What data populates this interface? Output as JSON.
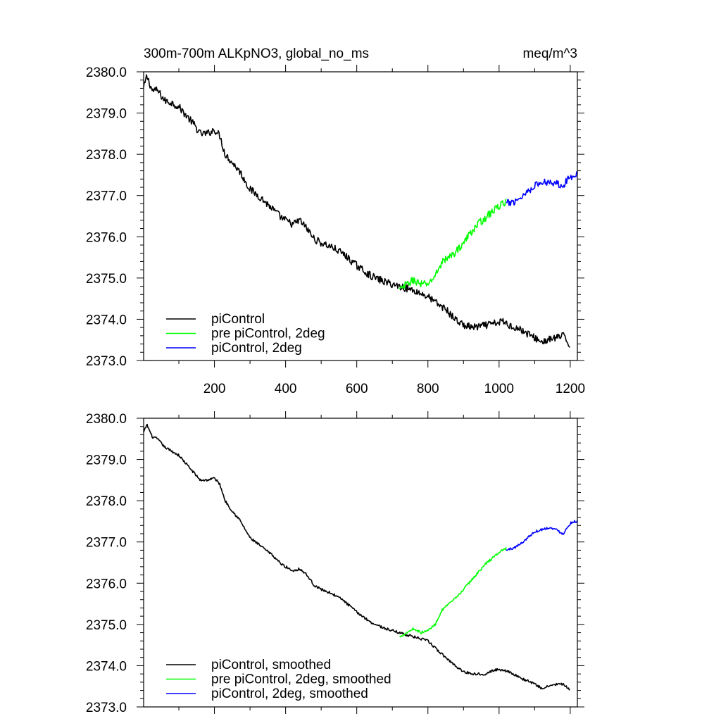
{
  "chart_data": [
    {
      "type": "line",
      "title": "300m-700m ALKpNO3, global_no_ms",
      "units": "meq/m^3",
      "xlabel": "",
      "ylabel": "",
      "xlim": [
        1,
        1220
      ],
      "ylim": [
        2373.0,
        2380.0
      ],
      "x_ticks": [
        "200",
        "400",
        "600",
        "800",
        "1000",
        "1200"
      ],
      "y_ticks": [
        "2380.0",
        "2379.0",
        "2378.0",
        "2377.0",
        "2376.0",
        "2375.0",
        "2374.0",
        "2373.0"
      ],
      "noise": 0.09,
      "legend_position": "bottom-left",
      "series": [
        {
          "name": "piControl",
          "color": "#000000",
          "x": [
            1,
            10,
            25,
            40,
            60,
            80,
            100,
            120,
            140,
            160,
            180,
            200,
            215,
            230,
            250,
            270,
            300,
            330,
            360,
            390,
            420,
            440,
            460,
            480,
            500,
            530,
            560,
            600,
            640,
            680,
            720,
            760,
            800,
            830,
            850,
            870,
            900,
            930,
            960,
            990,
            1010,
            1030,
            1060,
            1090,
            1120,
            1140,
            1160,
            1180,
            1200
          ],
          "values": [
            2379.6,
            2379.9,
            2379.55,
            2379.55,
            2379.3,
            2379.25,
            2379.15,
            2378.95,
            2378.75,
            2378.5,
            2378.5,
            2378.6,
            2378.45,
            2378.0,
            2377.8,
            2377.6,
            2377.15,
            2376.95,
            2376.7,
            2376.45,
            2376.3,
            2376.4,
            2376.2,
            2375.95,
            2375.85,
            2375.75,
            2375.6,
            2375.3,
            2375.05,
            2374.9,
            2374.8,
            2374.7,
            2374.55,
            2374.35,
            2374.25,
            2374.05,
            2373.85,
            2373.8,
            2373.85,
            2373.9,
            2373.95,
            2373.85,
            2373.75,
            2373.6,
            2373.45,
            2373.5,
            2373.55,
            2373.6,
            2373.35
          ]
        },
        {
          "name": "pre piControl, 2deg",
          "color": "#00ff00",
          "x": [
            720,
            740,
            760,
            780,
            800,
            820,
            840,
            860,
            880,
            900,
            920,
            940,
            960,
            980,
            1000,
            1020
          ],
          "values": [
            2374.7,
            2374.85,
            2374.95,
            2374.85,
            2374.85,
            2375.05,
            2375.4,
            2375.5,
            2375.65,
            2375.85,
            2376.1,
            2376.3,
            2376.45,
            2376.6,
            2376.75,
            2376.85
          ]
        },
        {
          "name": "piControl, 2deg",
          "color": "#0000ff",
          "x": [
            1020,
            1040,
            1060,
            1080,
            1100,
            1120,
            1140,
            1160,
            1180,
            1200,
            1210,
            1220
          ],
          "values": [
            2376.8,
            2376.85,
            2376.95,
            2377.1,
            2377.25,
            2377.3,
            2377.35,
            2377.3,
            2377.25,
            2377.45,
            2377.5,
            2377.55
          ]
        }
      ]
    },
    {
      "type": "line",
      "title": "",
      "xlabel": "",
      "ylabel": "",
      "xlim": [
        1,
        1220
      ],
      "ylim": [
        2373.0,
        2380.0
      ],
      "y_ticks": [
        "2380.0",
        "2379.0",
        "2378.0",
        "2377.0",
        "2376.0",
        "2375.0",
        "2374.0",
        "2373.0"
      ],
      "noise": 0.03,
      "legend_position": "bottom-left",
      "series": [
        {
          "name": "piControl, smoothed",
          "color": "#000000",
          "x": [
            1,
            10,
            25,
            40,
            60,
            80,
            100,
            120,
            140,
            160,
            180,
            200,
            215,
            230,
            250,
            270,
            300,
            330,
            360,
            390,
            420,
            440,
            460,
            480,
            500,
            530,
            560,
            600,
            640,
            680,
            720,
            760,
            800,
            830,
            850,
            870,
            900,
            930,
            960,
            990,
            1010,
            1030,
            1060,
            1090,
            1120,
            1140,
            1160,
            1180,
            1200
          ],
          "values": [
            2379.65,
            2379.85,
            2379.55,
            2379.5,
            2379.3,
            2379.2,
            2379.1,
            2378.9,
            2378.7,
            2378.5,
            2378.5,
            2378.55,
            2378.4,
            2378.0,
            2377.75,
            2377.55,
            2377.1,
            2376.9,
            2376.7,
            2376.45,
            2376.3,
            2376.35,
            2376.2,
            2375.95,
            2375.85,
            2375.75,
            2375.6,
            2375.3,
            2375.05,
            2374.9,
            2374.8,
            2374.7,
            2374.6,
            2374.35,
            2374.2,
            2374.05,
            2373.85,
            2373.8,
            2373.8,
            2373.9,
            2373.9,
            2373.85,
            2373.7,
            2373.6,
            2373.45,
            2373.5,
            2373.55,
            2373.55,
            2373.4
          ]
        },
        {
          "name": "pre piControl, 2deg, smoothed",
          "color": "#00ff00",
          "x": [
            720,
            740,
            760,
            780,
            800,
            820,
            840,
            860,
            880,
            900,
            920,
            940,
            960,
            980,
            1000,
            1020
          ],
          "values": [
            2374.7,
            2374.8,
            2374.9,
            2374.8,
            2374.85,
            2375.0,
            2375.35,
            2375.5,
            2375.65,
            2375.85,
            2376.05,
            2376.25,
            2376.45,
            2376.6,
            2376.75,
            2376.85
          ]
        },
        {
          "name": "piControl, 2deg, smoothed",
          "color": "#0000ff",
          "x": [
            1020,
            1040,
            1060,
            1080,
            1100,
            1120,
            1140,
            1160,
            1180,
            1200,
            1210,
            1220
          ],
          "values": [
            2376.8,
            2376.85,
            2376.95,
            2377.1,
            2377.25,
            2377.3,
            2377.35,
            2377.3,
            2377.2,
            2377.45,
            2377.5,
            2377.5
          ]
        }
      ]
    }
  ]
}
